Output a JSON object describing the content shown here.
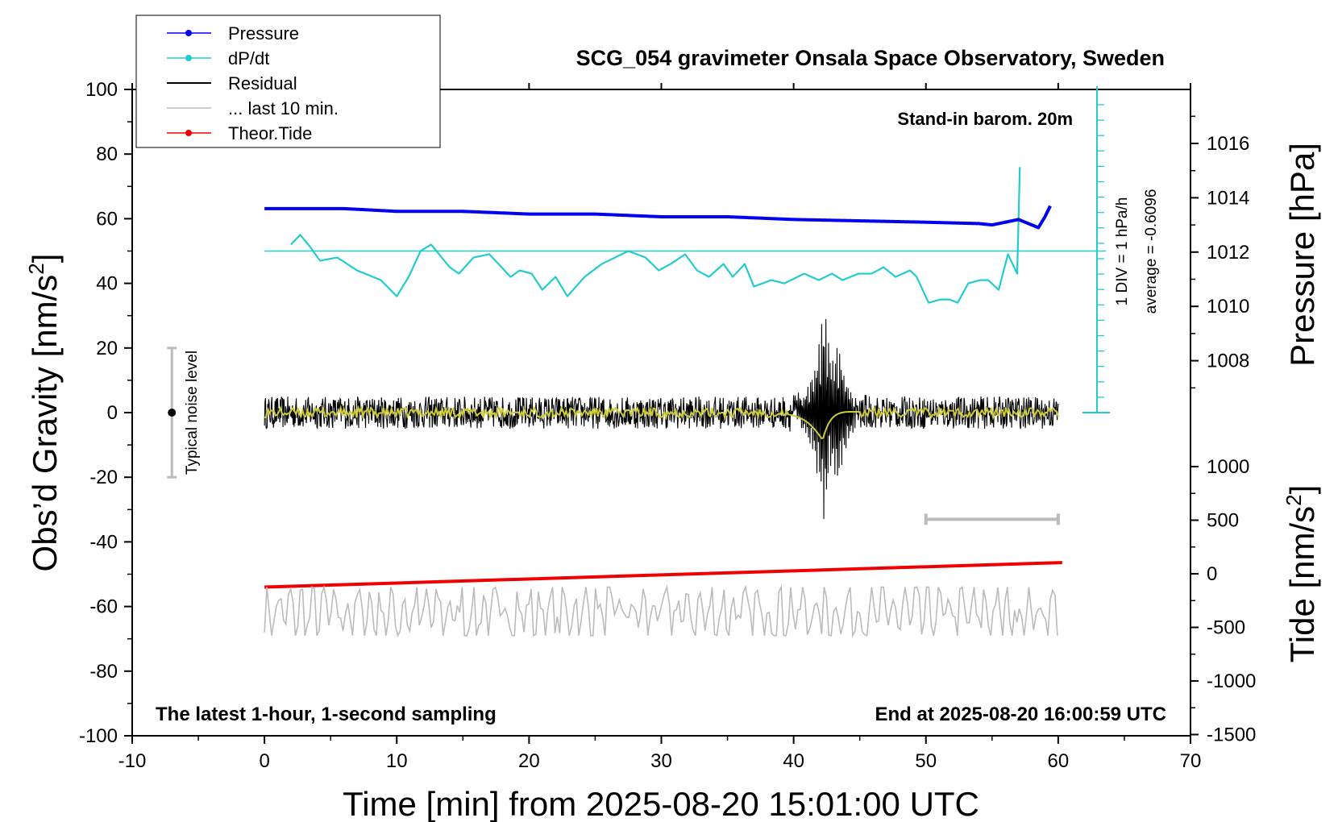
{
  "chart_data": {
    "type": "line",
    "title": "SCG_054 gravimeter Onsala Space Observatory, Sweden",
    "subtitle_left": "The latest 1-hour, 1-second sampling",
    "subtitle_right": "End at 2025-08-20 16:00:59 UTC",
    "barometer_note": "Stand-in barom. 20m",
    "xlabel": "Time [min] from 2025-08-20 15:01:00 UTC",
    "xlim": [
      -10,
      70
    ],
    "x_ticks": [
      -10,
      0,
      10,
      20,
      30,
      40,
      50,
      60,
      70
    ],
    "y_left": {
      "label_main": "Obs’d Gravity [nm/s",
      "label_sup": "2",
      "label_end": "]",
      "ylim": [
        -100,
        100
      ],
      "ticks": [
        -100,
        -80,
        -60,
        -40,
        -20,
        0,
        20,
        40,
        60,
        80,
        100
      ]
    },
    "y_right_pressure": {
      "label": "Pressure [hPa]",
      "ticks": [
        1008,
        1010,
        1012,
        1014,
        1016
      ]
    },
    "y_right_tide": {
      "label_main": "Tide [nm/s",
      "label_sup": "2",
      "label_end": "]",
      "ticks": [
        1000,
        500,
        0,
        -500,
        -1000,
        -1500
      ]
    },
    "dpdt_scale_label": "1 DIV = 1 hPa/h",
    "dpdt_average_label": "average = -0.6096",
    "noise_label": "Typical noise level",
    "noise_bar": {
      "x": -7,
      "center": 0,
      "half_range": 20
    },
    "legend": [
      {
        "name": "Pressure",
        "color": "#0000ee",
        "marker": true
      },
      {
        "name": "dP/dt",
        "color": "#22cccc",
        "marker": true
      },
      {
        "name": "Residual",
        "color": "#000000",
        "marker": false
      },
      {
        "name": "... last 10 min.",
        "color": "#bbbbbb",
        "marker": false
      },
      {
        "name": "Theor.Tide",
        "color": "#ee0000",
        "marker": true
      }
    ],
    "colors": {
      "pressure": "#0000ee",
      "dpdt": "#22cccc",
      "residual": "#000000",
      "residual_smooth": "#cccc33",
      "last10": "#bbbbbb",
      "tide": "#ee0000",
      "noise_bar": "#bbbbbb"
    },
    "series": [
      {
        "name": "Pressure",
        "unit": "hPa",
        "x": [
          0,
          3,
          6,
          10,
          15,
          20,
          25,
          30,
          35,
          40,
          45,
          50,
          54,
          55,
          56,
          57,
          57.5,
          58.5,
          59,
          59.5
        ],
        "values": [
          1013.6,
          1013.6,
          1013.6,
          1013.5,
          1013.5,
          1013.4,
          1013.4,
          1013.3,
          1013.3,
          1013.2,
          1013.15,
          1013.1,
          1013.05,
          1013.0,
          1013.1,
          1013.2,
          1013.1,
          1012.9,
          1013.3,
          1013.8
        ]
      },
      {
        "name": "dP/dt",
        "unit": "gravity-axis units (baseline 50)",
        "x": [
          2,
          2.7,
          3.5,
          4.2,
          5.5,
          7,
          8.8,
          10,
          10.9,
          11.8,
          12.6,
          14,
          14.7,
          15.8,
          17,
          18.6,
          19.3,
          20.2,
          21,
          22,
          22.9,
          24.2,
          25.5,
          27.5,
          28.8,
          29.8,
          30.7,
          31.8,
          32.7,
          33.6,
          34.7,
          35.4,
          36.3,
          37,
          38.3,
          39.3,
          40.8,
          41.9,
          42.9,
          43.7,
          44.9,
          45.9,
          46.8,
          47.7,
          48.8,
          49.3,
          50.2,
          51.1,
          51.8,
          52.4,
          53.2,
          54.1,
          54.7,
          55.5,
          56.2,
          56.9,
          57.1
        ],
        "values": [
          52,
          55,
          51,
          47,
          48,
          44,
          41,
          36,
          42,
          50,
          52,
          45,
          43,
          48,
          49,
          42,
          44,
          43,
          38,
          42,
          36,
          42,
          46,
          50,
          48,
          44,
          46,
          49,
          44,
          42,
          46,
          42,
          46,
          39,
          41,
          40,
          43,
          41,
          43,
          41,
          43,
          43,
          45,
          42,
          44,
          42,
          34,
          35,
          35,
          34,
          40,
          41,
          41,
          38,
          49,
          43,
          76
        ]
      },
      {
        "name": "Residual",
        "unit": "nm/s2",
        "noise_amp": 5,
        "events": [
          {
            "t": 42.3,
            "peak": 36,
            "trough": -37
          },
          {
            "t": 43.3,
            "peak": 25,
            "trough": -35
          }
        ],
        "xlim": [
          0,
          60
        ]
      },
      {
        "name": "... last 10 min.",
        "unit": "nm/s2 (offset -62)",
        "baseline": -62,
        "amp_range": [
          -69,
          -54
        ],
        "xlim": [
          0,
          60
        ]
      },
      {
        "name": "Theor.Tide",
        "unit": "nm/s2 (gravity-axis)",
        "x": [
          0,
          60.3
        ],
        "values": [
          -54,
          -46.4
        ]
      }
    ],
    "scale_bar": {
      "x_start": 50,
      "x_end": 60,
      "y": -33
    },
    "grid": false,
    "legend_position": "top-left"
  }
}
